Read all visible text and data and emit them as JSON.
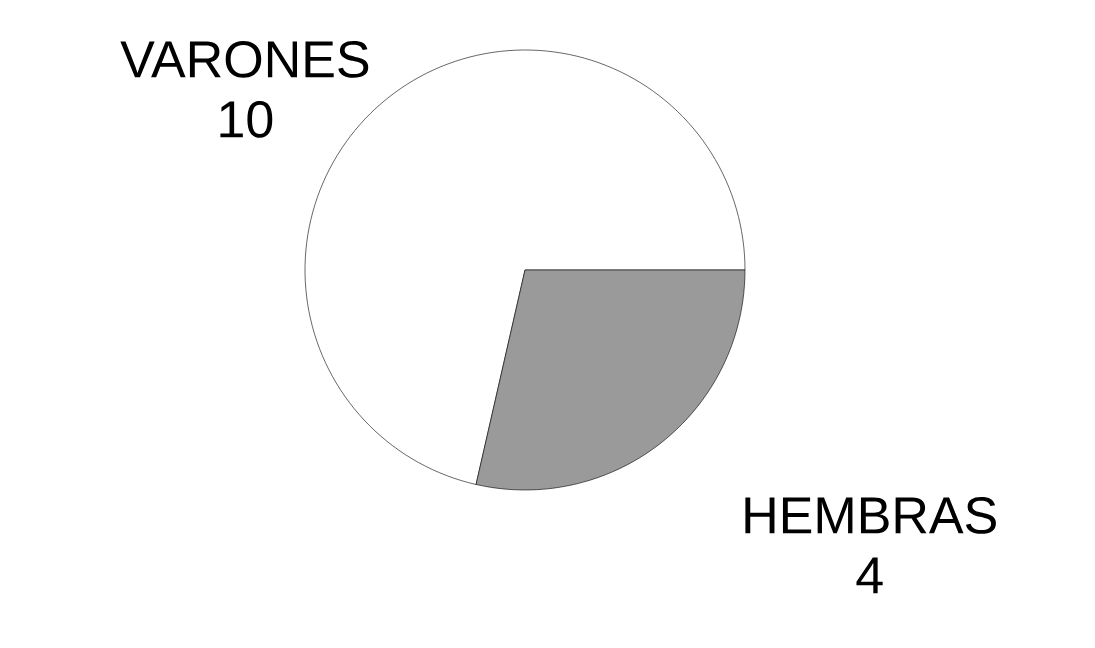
{
  "chart_data": {
    "type": "pie",
    "categories": [
      "VARONES",
      "HEMBRAS"
    ],
    "values": [
      10,
      4
    ],
    "colors": [
      "#ffffff",
      "#9a9a9a"
    ],
    "data_labels": true
  }
}
